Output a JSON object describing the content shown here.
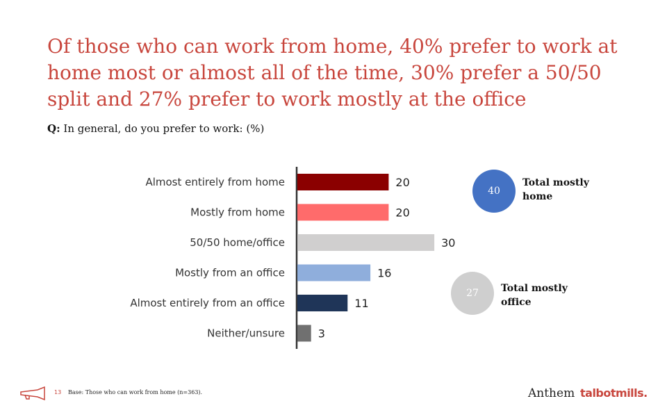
{
  "title": "Of those who can work from home, 40% prefer to work at home most or almost all of the time, 30% prefer a 50/50 split and 27% prefer to work mostly at the office",
  "question": {
    "prefix": "Q:",
    "text": "In general, do you prefer to work: (%)"
  },
  "chart_data": {
    "type": "bar",
    "orientation": "horizontal",
    "categories": [
      "Almost entirely from home",
      "Mostly from home",
      "50/50 home/office",
      "Mostly from an office",
      "Almost entirely from an office",
      "Neither/unsure"
    ],
    "values": [
      20,
      20,
      30,
      16,
      11,
      3
    ],
    "colors": [
      "#8b0000",
      "#ff6b6b",
      "#d0cfcf",
      "#8faedc",
      "#1f3558",
      "#707070"
    ],
    "xlim": [
      0,
      35
    ]
  },
  "summary": [
    {
      "value": "40",
      "label": "Total mostly home",
      "color": "#4472c4"
    },
    {
      "value": "27",
      "label": "Total mostly office",
      "color": "#cfcfcf"
    }
  ],
  "footer": {
    "page_number": "13",
    "base": "Base: Those who can work from home (n=363)."
  },
  "logos": {
    "anthem": "Anthem",
    "talbotmills": "talbotmills."
  }
}
